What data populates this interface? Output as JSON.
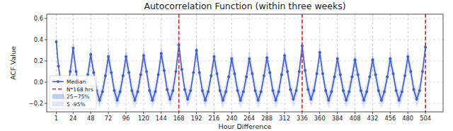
{
  "chart_data": {
    "type": "line",
    "title": "Autocorrelation Function (within three weeks)",
    "x_label": "Hour Difference",
    "y_label": "ACF Value",
    "grid": true,
    "legend": "lower left",
    "xlim": [
      -12,
      528
    ],
    "ylim": [
      -0.28,
      0.64
    ],
    "xticks": [
      1,
      24,
      48,
      72,
      96,
      120,
      144,
      168,
      192,
      216,
      240,
      264,
      288,
      312,
      336,
      360,
      384,
      408,
      432,
      456,
      480,
      504
    ],
    "yticks": [
      {
        "value": -0.2,
        "label": "−0.2"
      },
      {
        "value": 0,
        "label": "0.0"
      },
      0.2,
      0.4,
      0.6
    ],
    "x": [
      1,
      4,
      8,
      12,
      16,
      20,
      24,
      28,
      32,
      36,
      40,
      44,
      48,
      52,
      56,
      60,
      64,
      68,
      72,
      76,
      80,
      84,
      88,
      92,
      96,
      100,
      104,
      108,
      112,
      116,
      120,
      124,
      128,
      132,
      136,
      140,
      144,
      148,
      152,
      156,
      160,
      164,
      168,
      172,
      176,
      180,
      184,
      188,
      192,
      196,
      200,
      204,
      208,
      212,
      216,
      220,
      224,
      228,
      232,
      236,
      240,
      244,
      248,
      252,
      256,
      260,
      264,
      268,
      272,
      276,
      280,
      284,
      288,
      292,
      296,
      300,
      304,
      308,
      312,
      316,
      320,
      324,
      328,
      332,
      336,
      340,
      344,
      348,
      352,
      356,
      360,
      364,
      368,
      372,
      376,
      380,
      384,
      388,
      392,
      396,
      400,
      404,
      408,
      412,
      416,
      420,
      424,
      428,
      432,
      436,
      440,
      444,
      448,
      452,
      456,
      460,
      464,
      468,
      472,
      476,
      480,
      484,
      488,
      492,
      496,
      500,
      504
    ],
    "series": [
      {
        "name": "Median",
        "type": "line",
        "color": "#3d5fd6",
        "marker": "circle",
        "line_style": "solid",
        "values": [
          0.38,
          0.15,
          -0.05,
          -0.15,
          -0.08,
          0.1,
          0.32,
          0.1,
          -0.08,
          -0.17,
          -0.09,
          0.07,
          0.26,
          0.09,
          -0.08,
          -0.17,
          -0.09,
          0.06,
          0.24,
          0.09,
          -0.08,
          -0.17,
          -0.09,
          0.06,
          0.24,
          0.09,
          -0.08,
          -0.17,
          -0.09,
          0.07,
          0.25,
          0.1,
          -0.08,
          -0.17,
          -0.09,
          0.07,
          0.27,
          0.11,
          -0.07,
          -0.16,
          -0.08,
          0.1,
          0.35,
          0.12,
          -0.07,
          -0.16,
          -0.08,
          0.09,
          0.3,
          0.09,
          -0.08,
          -0.17,
          -0.09,
          0.06,
          0.24,
          0.08,
          -0.08,
          -0.17,
          -0.09,
          0.05,
          0.22,
          0.08,
          -0.08,
          -0.17,
          -0.09,
          0.05,
          0.22,
          0.08,
          -0.08,
          -0.17,
          -0.09,
          0.06,
          0.23,
          0.09,
          -0.08,
          -0.17,
          -0.09,
          0.07,
          0.25,
          0.1,
          -0.07,
          -0.16,
          -0.08,
          0.1,
          0.34,
          0.11,
          -0.07,
          -0.16,
          -0.08,
          0.08,
          0.28,
          0.08,
          -0.08,
          -0.17,
          -0.09,
          0.05,
          0.22,
          0.07,
          -0.08,
          -0.17,
          -0.09,
          0.05,
          0.21,
          0.07,
          -0.08,
          -0.17,
          -0.09,
          0.05,
          0.21,
          0.07,
          -0.08,
          -0.17,
          -0.09,
          0.05,
          0.22,
          0.08,
          -0.08,
          -0.17,
          -0.09,
          0.06,
          0.24,
          0.1,
          -0.07,
          -0.16,
          -0.08,
          0.1,
          0.33
        ]
      },
      {
        "name": "25~75%",
        "type": "band",
        "color": "#3d5fd6",
        "low": [
          0.34,
          0.12,
          -0.08,
          -0.18,
          -0.11,
          0.07,
          0.28,
          0.07,
          -0.11,
          -0.2,
          -0.12,
          0.04,
          0.22,
          0.06,
          -0.11,
          -0.2,
          -0.12,
          0.03,
          0.2,
          0.06,
          -0.11,
          -0.2,
          -0.12,
          0.03,
          0.2,
          0.06,
          -0.11,
          -0.2,
          -0.12,
          0.04,
          0.21,
          0.07,
          -0.11,
          -0.2,
          -0.12,
          0.04,
          0.23,
          0.08,
          -0.1,
          -0.19,
          -0.11,
          0.07,
          0.31,
          0.09,
          -0.1,
          -0.19,
          -0.11,
          0.06,
          0.26,
          0.06,
          -0.11,
          -0.2,
          -0.12,
          0.03,
          0.2,
          0.05,
          -0.11,
          -0.2,
          -0.12,
          0.02,
          0.18,
          0.05,
          -0.11,
          -0.2,
          -0.12,
          0.02,
          0.18,
          0.05,
          -0.11,
          -0.2,
          -0.12,
          0.03,
          0.19,
          0.06,
          -0.11,
          -0.2,
          -0.12,
          0.04,
          0.21,
          0.07,
          -0.1,
          -0.19,
          -0.11,
          0.07,
          0.3,
          0.08,
          -0.1,
          -0.19,
          -0.11,
          0.05,
          0.24,
          0.05,
          -0.11,
          -0.2,
          -0.12,
          0.02,
          0.18,
          0.04,
          -0.11,
          -0.2,
          -0.12,
          0.02,
          0.17,
          0.04,
          -0.11,
          -0.2,
          -0.12,
          0.02,
          0.17,
          0.04,
          -0.11,
          -0.2,
          -0.12,
          0.02,
          0.18,
          0.05,
          -0.11,
          -0.2,
          -0.12,
          0.03,
          0.2,
          0.07,
          -0.1,
          -0.19,
          -0.11,
          0.07,
          0.29
        ],
        "high": [
          0.42,
          0.18,
          -0.02,
          -0.12,
          -0.05,
          0.13,
          0.36,
          0.13,
          -0.05,
          -0.14,
          -0.06,
          0.1,
          0.3,
          0.12,
          -0.05,
          -0.14,
          -0.06,
          0.09,
          0.28,
          0.12,
          -0.05,
          -0.14,
          -0.06,
          0.09,
          0.28,
          0.12,
          -0.05,
          -0.14,
          -0.06,
          0.1,
          0.29,
          0.13,
          -0.05,
          -0.14,
          -0.06,
          0.1,
          0.31,
          0.14,
          -0.04,
          -0.13,
          -0.05,
          0.13,
          0.39,
          0.15,
          -0.04,
          -0.13,
          -0.05,
          0.12,
          0.34,
          0.12,
          -0.05,
          -0.14,
          -0.06,
          0.09,
          0.28,
          0.11,
          -0.05,
          -0.14,
          -0.06,
          0.08,
          0.26,
          0.11,
          -0.05,
          -0.14,
          -0.06,
          0.08,
          0.26,
          0.11,
          -0.05,
          -0.14,
          -0.06,
          0.09,
          0.27,
          0.12,
          -0.05,
          -0.14,
          -0.06,
          0.1,
          0.29,
          0.13,
          -0.04,
          -0.13,
          -0.05,
          0.13,
          0.38,
          0.14,
          -0.04,
          -0.13,
          -0.05,
          0.11,
          0.32,
          0.11,
          -0.05,
          -0.14,
          -0.06,
          0.08,
          0.26,
          0.1,
          -0.05,
          -0.14,
          -0.06,
          0.08,
          0.25,
          0.1,
          -0.05,
          -0.14,
          -0.06,
          0.08,
          0.25,
          0.1,
          -0.05,
          -0.14,
          -0.06,
          0.08,
          0.26,
          0.11,
          -0.05,
          -0.14,
          -0.06,
          0.09,
          0.28,
          0.13,
          -0.04,
          -0.13,
          -0.05,
          0.13,
          0.37
        ]
      },
      {
        "name": "5 -95%",
        "type": "band",
        "color": "#3d5fd6",
        "low": [
          0.27,
          0.07,
          -0.13,
          -0.23,
          -0.16,
          0.02,
          0.22,
          0.02,
          -0.16,
          -0.25,
          -0.17,
          -0.01,
          0.16,
          0.01,
          -0.16,
          -0.25,
          -0.17,
          -0.02,
          0.14,
          0.01,
          -0.16,
          -0.25,
          -0.17,
          -0.02,
          0.14,
          0.01,
          -0.16,
          -0.25,
          -0.17,
          -0.01,
          0.15,
          0.02,
          -0.16,
          -0.25,
          -0.17,
          -0.01,
          0.17,
          0.03,
          -0.15,
          -0.24,
          -0.16,
          0.02,
          0.25,
          0.04,
          -0.15,
          -0.24,
          -0.16,
          0.01,
          0.2,
          0.01,
          -0.16,
          -0.25,
          -0.17,
          -0.02,
          0.14,
          0.0,
          -0.16,
          -0.25,
          -0.17,
          -0.03,
          0.12,
          0.0,
          -0.16,
          -0.25,
          -0.17,
          -0.03,
          0.12,
          0.0,
          -0.16,
          -0.25,
          -0.17,
          -0.02,
          0.13,
          0.01,
          -0.16,
          -0.25,
          -0.17,
          -0.01,
          0.15,
          0.02,
          -0.15,
          -0.24,
          -0.16,
          0.02,
          0.24,
          0.03,
          -0.15,
          -0.24,
          -0.16,
          0.0,
          0.18,
          0.0,
          -0.16,
          -0.25,
          -0.17,
          -0.03,
          0.12,
          -0.01,
          -0.16,
          -0.25,
          -0.17,
          -0.03,
          0.11,
          -0.01,
          -0.16,
          -0.25,
          -0.17,
          -0.03,
          0.11,
          -0.01,
          -0.16,
          -0.25,
          -0.17,
          -0.03,
          0.12,
          0.0,
          -0.16,
          -0.25,
          -0.17,
          -0.02,
          0.14,
          0.02,
          -0.15,
          -0.24,
          -0.16,
          0.02,
          0.23
        ],
        "high": [
          0.5,
          0.23,
          0.03,
          -0.07,
          0.0,
          0.18,
          0.42,
          0.18,
          0.0,
          -0.09,
          -0.01,
          0.15,
          0.36,
          0.17,
          0.0,
          -0.09,
          -0.01,
          0.14,
          0.34,
          0.17,
          0.0,
          -0.09,
          -0.01,
          0.14,
          0.34,
          0.17,
          0.0,
          -0.09,
          -0.01,
          0.15,
          0.35,
          0.18,
          0.0,
          -0.09,
          -0.01,
          0.15,
          0.37,
          0.19,
          0.01,
          -0.08,
          0.0,
          0.18,
          0.45,
          0.2,
          0.01,
          -0.08,
          0.0,
          0.17,
          0.4,
          0.17,
          0.0,
          -0.09,
          -0.01,
          0.14,
          0.34,
          0.16,
          0.0,
          -0.09,
          -0.01,
          0.13,
          0.32,
          0.16,
          0.0,
          -0.09,
          -0.01,
          0.13,
          0.32,
          0.16,
          0.0,
          -0.09,
          -0.01,
          0.14,
          0.33,
          0.17,
          0.0,
          -0.09,
          -0.01,
          0.15,
          0.35,
          0.18,
          0.01,
          -0.08,
          0.0,
          0.18,
          0.44,
          0.19,
          0.01,
          -0.08,
          0.0,
          0.16,
          0.38,
          0.16,
          0.0,
          -0.09,
          -0.01,
          0.13,
          0.32,
          0.15,
          0.0,
          -0.09,
          -0.01,
          0.13,
          0.31,
          0.15,
          0.0,
          -0.09,
          -0.01,
          0.13,
          0.31,
          0.15,
          0.0,
          -0.09,
          -0.01,
          0.13,
          0.32,
          0.16,
          0.0,
          -0.09,
          -0.01,
          0.14,
          0.34,
          0.18,
          0.01,
          -0.08,
          0.0,
          0.18,
          0.43
        ]
      }
    ],
    "vlines": {
      "name": "N*168 hrs",
      "color": "#e0242b",
      "line_style": "dashed",
      "x": [
        168,
        336,
        504
      ]
    }
  }
}
